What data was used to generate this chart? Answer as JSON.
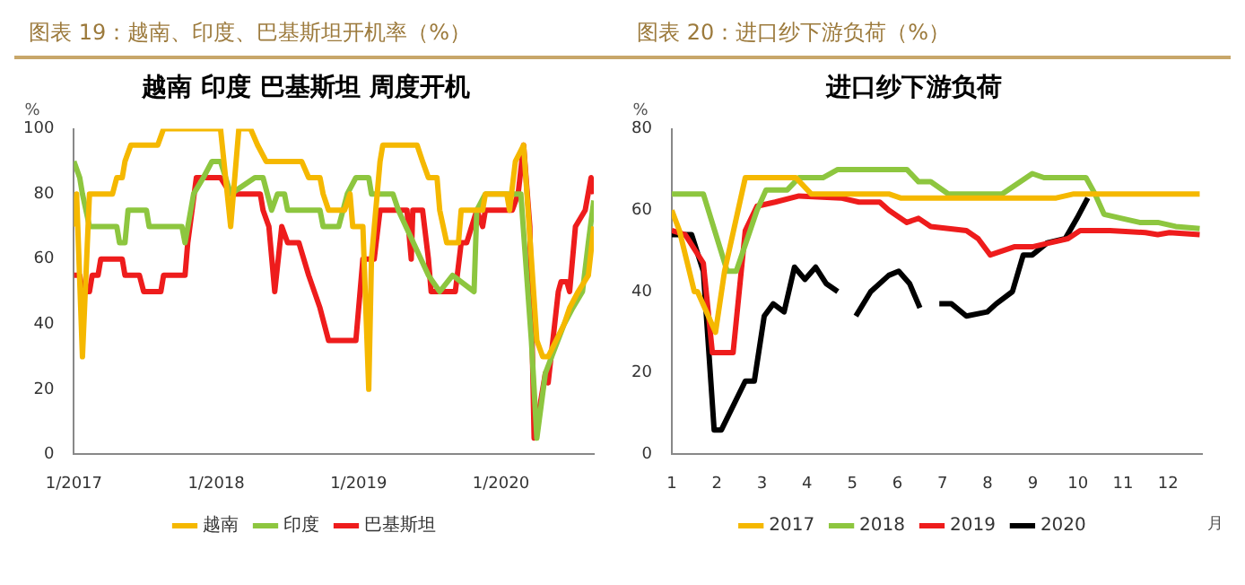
{
  "chart_data": [
    {
      "type": "line",
      "title": "图表 19：越南、印度、巴基斯坦开机率（%）",
      "subtitle": "越南 印度 巴基斯坦 周度开机",
      "ylabel": "%",
      "xlim": [
        "2017-01-01",
        "2020-08-26"
      ],
      "xticks": [
        {
          "value": "2017-01-01",
          "label": "1/2017"
        },
        {
          "value": "2018-01-01",
          "label": "1/2018"
        },
        {
          "value": "2019-01-01",
          "label": "1/2019"
        },
        {
          "value": "2020-01-01",
          "label": "1/2020"
        }
      ],
      "ylim": [
        0,
        100
      ],
      "yticks": [
        0,
        20,
        40,
        60,
        80,
        100
      ],
      "grid": false,
      "legend": "bottom",
      "series": [
        {
          "name": "越南",
          "color": "#f5b800",
          "x": [
            "2017-01-01",
            "2017-01-08",
            "2017-01-23",
            "2017-02-10",
            "2017-04-10",
            "2017-04-21",
            "2017-05-05",
            "2017-05-12",
            "2017-05-27",
            "2017-08-04",
            "2017-08-19",
            "2018-01-12",
            "2018-02-07",
            "2018-02-28",
            "2018-03-30",
            "2018-04-17",
            "2018-05-09",
            "2018-08-08",
            "2018-08-26",
            "2018-09-24",
            "2018-10-02",
            "2018-10-16",
            "2018-11-26",
            "2018-12-10",
            "2018-12-17",
            "2019-01-12",
            "2019-01-27",
            "2019-02-03",
            "2019-02-25",
            "2019-03-04",
            "2019-05-31",
            "2019-06-14",
            "2019-06-29",
            "2019-07-21",
            "2019-07-28",
            "2019-08-15",
            "2019-09-14",
            "2019-09-21",
            "2019-11-15",
            "2019-11-22",
            "2020-01-16",
            "2020-01-23",
            "2020-02-07",
            "2020-02-28",
            "2020-03-19",
            "2020-04-02",
            "2020-04-17",
            "2020-05-01",
            "2020-06-11",
            "2020-06-25",
            "2020-07-17",
            "2020-08-12",
            "2020-08-26"
          ],
          "values": [
            70,
            80,
            30,
            80,
            80,
            85,
            85,
            90,
            95,
            95,
            100,
            100,
            70,
            100,
            100,
            95,
            90,
            90,
            85,
            85,
            80,
            75,
            75,
            80,
            70,
            70,
            20,
            60,
            90,
            95,
            95,
            90,
            85,
            85,
            75,
            65,
            65,
            75,
            75,
            80,
            80,
            75,
            90,
            95,
            60,
            35,
            30,
            30,
            40,
            45,
            50,
            55,
            70
          ]
        },
        {
          "name": "印度",
          "color": "#8dc63f",
          "x": [
            "2017-01-01",
            "2017-01-16",
            "2017-01-23",
            "2017-02-10",
            "2017-04-21",
            "2017-04-28",
            "2017-05-12",
            "2017-05-20",
            "2017-07-06",
            "2017-07-13",
            "2017-10-05",
            "2017-10-13",
            "2017-11-04",
            "2017-11-29",
            "2017-12-21",
            "2018-01-12",
            "2018-02-07",
            "2018-04-10",
            "2018-05-01",
            "2018-05-23",
            "2018-06-07",
            "2018-06-25",
            "2018-07-03",
            "2018-09-24",
            "2018-10-02",
            "2018-11-11",
            "2018-12-03",
            "2018-12-25",
            "2019-01-27",
            "2019-02-03",
            "2019-03-30",
            "2019-04-13",
            "2019-06-29",
            "2019-07-28",
            "2019-08-30",
            "2019-10-24",
            "2019-10-31",
            "2019-11-22",
            "2020-01-30",
            "2020-02-21",
            "2020-03-19",
            "2020-04-02",
            "2020-04-24",
            "2020-06-11",
            "2020-07-03",
            "2020-07-28",
            "2020-08-12",
            "2020-08-26"
          ],
          "values": [
            90,
            85,
            80,
            70,
            70,
            65,
            65,
            75,
            75,
            70,
            70,
            65,
            80,
            85,
            90,
            90,
            80,
            85,
            85,
            75,
            80,
            80,
            75,
            75,
            70,
            70,
            80,
            85,
            85,
            80,
            80,
            75,
            55,
            50,
            55,
            50,
            75,
            80,
            80,
            80,
            35,
            5,
            25,
            40,
            45,
            50,
            65,
            78
          ]
        },
        {
          "name": "巴基斯坦",
          "color": "#ee1c1c",
          "x": [
            "2017-01-01",
            "2017-01-16",
            "2017-01-23",
            "2017-02-10",
            "2017-02-17",
            "2017-03-04",
            "2017-03-11",
            "2017-05-05",
            "2017-05-12",
            "2017-06-18",
            "2017-06-29",
            "2017-08-12",
            "2017-08-19",
            "2017-10-13",
            "2017-10-20",
            "2017-11-11",
            "2018-01-12",
            "2018-02-07",
            "2018-04-24",
            "2018-05-01",
            "2018-05-16",
            "2018-05-31",
            "2018-06-18",
            "2018-07-03",
            "2018-08-01",
            "2018-08-26",
            "2018-09-24",
            "2018-10-16",
            "2018-12-25",
            "2019-01-12",
            "2019-02-10",
            "2019-02-25",
            "2019-05-05",
            "2019-05-16",
            "2019-05-20",
            "2019-06-14",
            "2019-06-29",
            "2019-07-06",
            "2019-09-06",
            "2019-09-21",
            "2019-10-05",
            "2019-10-31",
            "2019-11-15",
            "2019-11-22",
            "2020-01-30",
            "2020-02-14",
            "2020-02-28",
            "2020-03-15",
            "2020-03-26",
            "2020-04-10",
            "2020-04-24",
            "2020-05-01",
            "2020-05-27",
            "2020-06-03",
            "2020-06-18",
            "2020-06-25",
            "2020-07-10",
            "2020-08-04",
            "2020-08-19",
            "2020-08-26"
          ],
          "values": [
            55,
            55,
            50,
            50,
            55,
            55,
            60,
            60,
            55,
            55,
            50,
            50,
            55,
            55,
            65,
            85,
            85,
            80,
            80,
            75,
            70,
            50,
            70,
            65,
            65,
            55,
            45,
            35,
            35,
            60,
            60,
            75,
            75,
            60,
            75,
            75,
            60,
            50,
            50,
            65,
            65,
            75,
            70,
            75,
            75,
            80,
            95,
            70,
            5,
            15,
            25,
            22,
            50,
            53,
            53,
            50,
            70,
            75,
            85,
            80
          ]
        }
      ]
    },
    {
      "type": "line",
      "title": "图表 20：进口纱下游负荷（%）",
      "subtitle": "进口纱下游负荷",
      "ylabel": "%",
      "xlabel": "月",
      "xlim": [
        1,
        12.75
      ],
      "xticks": [
        1,
        2,
        3,
        4,
        5,
        6,
        7,
        8,
        9,
        10,
        11,
        12
      ],
      "ylim": [
        0,
        80
      ],
      "yticks": [
        0,
        20,
        40,
        60,
        80
      ],
      "grid": false,
      "legend": "bottom",
      "series": [
        {
          "name": "2017",
          "color": "#f5b800",
          "x": [
            1,
            1.17,
            1.5,
            1.57,
            1.97,
            2.17,
            2.63,
            3.75,
            4.09,
            5.81,
            6.07,
            9.52,
            9.91,
            12.7
          ],
          "values": [
            60,
            55,
            40,
            40,
            30,
            45,
            68,
            68,
            64,
            64,
            63,
            63,
            64,
            64
          ]
        },
        {
          "name": "2018",
          "color": "#8dc63f",
          "x": [
            1,
            1.7,
            2.23,
            2.43,
            2.89,
            3.09,
            3.56,
            3.82,
            4.35,
            4.68,
            6.21,
            6.47,
            6.74,
            7.13,
            8.32,
            8.99,
            9.25,
            10.18,
            10.38,
            10.58,
            10.97,
            11.37,
            11.77,
            12.17,
            12.7
          ],
          "values": [
            64,
            64,
            45,
            45,
            60,
            65,
            65,
            68,
            68,
            70,
            70,
            67,
            67,
            64,
            64,
            69,
            68,
            68,
            64,
            59,
            58,
            57,
            57,
            56,
            55.5
          ]
        },
        {
          "name": "2019",
          "color": "#ee1c1c",
          "x": [
            1,
            1.3,
            1.7,
            1.9,
            2.36,
            2.63,
            2.89,
            3.29,
            3.82,
            4.75,
            5.15,
            5.61,
            5.81,
            6.21,
            6.47,
            6.74,
            7.53,
            7.79,
            8.06,
            8.59,
            8.99,
            9.38,
            9.78,
            10.05,
            10.71,
            11.5,
            11.77,
            12.03,
            12.7
          ],
          "values": [
            55,
            54,
            47,
            25,
            25,
            55,
            61,
            62,
            63.5,
            63,
            62,
            62,
            60,
            57,
            58,
            56,
            55,
            53,
            49,
            51,
            51,
            52,
            53,
            55,
            55,
            54.5,
            54,
            54.5,
            54
          ]
        },
        {
          "name": "2020",
          "color": "#000000",
          "x": [
            1,
            1.44,
            1.7,
            1.94,
            2.1,
            2.63,
            2.83,
            3.05,
            3.25,
            3.49,
            3.72,
            3.95,
            4.19,
            4.42,
            4.68,
            4.88,
            5.08,
            5.41,
            5.81,
            6.03,
            6.27,
            6.5,
            6.7,
            6.93,
            7.2,
            7.53,
            7.99,
            8.19,
            8.55,
            8.79,
            8.99,
            9.32,
            9.72,
            9.98,
            10.22
          ],
          "values": [
            54,
            54,
            45,
            6,
            6,
            18,
            18,
            34,
            37,
            35,
            46,
            43,
            46,
            42,
            40,
            null,
            34,
            40,
            44,
            45,
            42,
            36,
            null,
            37,
            37,
            34,
            35,
            37,
            40,
            49,
            49,
            52,
            53,
            58,
            63
          ]
        }
      ]
    }
  ]
}
